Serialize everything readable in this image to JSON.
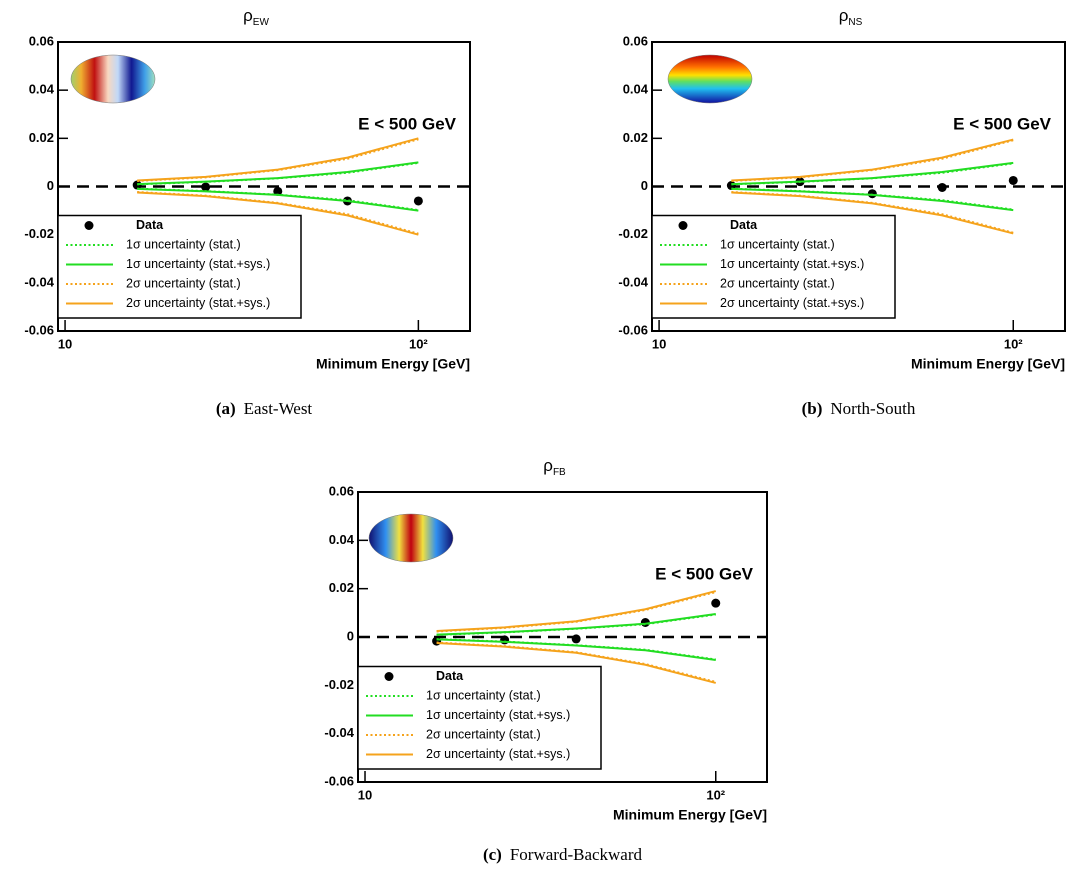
{
  "chart_data": [
    {
      "type": "scatter",
      "title": "ρ",
      "title_subscript": "EW",
      "caption_label": "(a)",
      "caption": "East-West",
      "annotation": "E < 500 GeV",
      "xlabel": "Minimum Energy [GeV]",
      "log_x": true,
      "legend": "lower left",
      "xlim": [
        9.55,
        140
      ],
      "xticks": [
        10,
        {
          "value": 100,
          "label": "10²"
        }
      ],
      "ylim": [
        -0.06,
        0.06
      ],
      "yticks": [
        -0.06,
        -0.04,
        -0.02,
        0,
        0.02,
        0.04,
        0.06
      ],
      "reference_line": 0,
      "x": [
        16,
        25,
        40,
        63,
        100
      ],
      "series": [
        {
          "name": "Data",
          "color": "#000000",
          "style": "points",
          "values": [
            0.0006,
            -0.0002,
            -0.002,
            -0.006,
            -0.006
          ]
        },
        {
          "name": "1σ uncertainty (stat.)",
          "color": "#22dd22",
          "style": "dotted",
          "values": [
            0.0009,
            0.0019,
            0.0034,
            0.0057,
            0.0098
          ],
          "lower_values": [
            -0.0009,
            -0.0019,
            -0.0034,
            -0.0057,
            -0.0098
          ]
        },
        {
          "name": "1σ uncertainty (stat.+sys.)",
          "color": "#22dd22",
          "style": "solid",
          "values": [
            0.001,
            0.002,
            0.0035,
            0.006,
            0.01
          ],
          "lower_values": [
            -0.001,
            -0.002,
            -0.0035,
            -0.006,
            -0.01
          ]
        },
        {
          "name": "2σ uncertainty (stat.)",
          "color": "#f5a31c",
          "style": "dotted",
          "values": [
            0.0023,
            0.0038,
            0.0068,
            0.0115,
            0.0196
          ],
          "lower_values": [
            -0.0023,
            -0.0038,
            -0.0068,
            -0.0115,
            -0.0196
          ]
        },
        {
          "name": "2σ uncertainty (stat.+sys.)",
          "color": "#f5a31c",
          "style": "solid",
          "values": [
            0.0025,
            0.004,
            0.007,
            0.012,
            0.02
          ],
          "lower_values": [
            -0.0025,
            -0.004,
            -0.007,
            -0.012,
            -0.02
          ]
        }
      ]
    },
    {
      "type": "scatter",
      "title": "ρ",
      "title_subscript": "NS",
      "caption_label": "(b)",
      "caption": "North-South",
      "annotation": "E < 500 GeV",
      "xlabel": "Minimum Energy [GeV]",
      "log_x": true,
      "legend": "lower left",
      "xlim": [
        9.55,
        140
      ],
      "xticks": [
        10,
        {
          "value": 100,
          "label": "10²"
        }
      ],
      "ylim": [
        -0.06,
        0.06
      ],
      "yticks": [
        -0.06,
        -0.04,
        -0.02,
        0,
        0.02,
        0.04,
        0.06
      ],
      "reference_line": 0,
      "x": [
        16,
        25,
        40,
        63,
        100
      ],
      "series": [
        {
          "name": "Data",
          "color": "#000000",
          "style": "points",
          "values": [
            0.0004,
            0.002,
            -0.003,
            -0.0004,
            0.0025
          ]
        },
        {
          "name": "1σ uncertainty (stat.)",
          "color": "#22dd22",
          "style": "dotted",
          "values": [
            0.0009,
            0.0019,
            0.0034,
            0.0057,
            0.0096
          ],
          "lower_values": [
            -0.0009,
            -0.0019,
            -0.0034,
            -0.0057,
            -0.0096
          ]
        },
        {
          "name": "1σ uncertainty (stat.+sys.)",
          "color": "#22dd22",
          "style": "solid",
          "values": [
            0.001,
            0.002,
            0.0035,
            0.006,
            0.0098
          ],
          "lower_values": [
            -0.001,
            -0.002,
            -0.0035,
            -0.006,
            -0.0098
          ]
        },
        {
          "name": "2σ uncertainty (stat.)",
          "color": "#f5a31c",
          "style": "dotted",
          "values": [
            0.0023,
            0.0038,
            0.0068,
            0.0115,
            0.0192
          ],
          "lower_values": [
            -0.0023,
            -0.0038,
            -0.0068,
            -0.0115,
            -0.0192
          ]
        },
        {
          "name": "2σ uncertainty (stat.+sys.)",
          "color": "#f5a31c",
          "style": "solid",
          "values": [
            0.0025,
            0.004,
            0.007,
            0.012,
            0.0195
          ],
          "lower_values": [
            -0.0025,
            -0.004,
            -0.007,
            -0.012,
            -0.0195
          ]
        }
      ]
    },
    {
      "type": "scatter",
      "title": "ρ",
      "title_subscript": "FB",
      "caption_label": "(c)",
      "caption": "Forward-Backward",
      "annotation": "E < 500 GeV",
      "xlabel": "Minimum Energy [GeV]",
      "log_x": true,
      "legend": "lower left",
      "xlim": [
        9.55,
        140
      ],
      "xticks": [
        10,
        {
          "value": 100,
          "label": "10²"
        }
      ],
      "ylim": [
        -0.06,
        0.06
      ],
      "yticks": [
        -0.06,
        -0.04,
        -0.02,
        0,
        0.02,
        0.04,
        0.06
      ],
      "reference_line": 0,
      "x": [
        16,
        25,
        40,
        63,
        100
      ],
      "series": [
        {
          "name": "Data",
          "color": "#000000",
          "style": "points",
          "values": [
            -0.0017,
            -0.0012,
            -0.0008,
            0.006,
            0.014
          ]
        },
        {
          "name": "1σ uncertainty (stat.)",
          "color": "#22dd22",
          "style": "dotted",
          "values": [
            0.0009,
            0.0019,
            0.0034,
            0.0053,
            0.0093
          ],
          "lower_values": [
            -0.0009,
            -0.0019,
            -0.0034,
            -0.0053,
            -0.0093
          ]
        },
        {
          "name": "1σ uncertainty (stat.+sys.)",
          "color": "#22dd22",
          "style": "solid",
          "values": [
            0.001,
            0.002,
            0.0035,
            0.0055,
            0.0095
          ],
          "lower_values": [
            -0.001,
            -0.002,
            -0.0035,
            -0.0055,
            -0.0095
          ]
        },
        {
          "name": "2σ uncertainty (stat.)",
          "color": "#f5a31c",
          "style": "dotted",
          "values": [
            0.0023,
            0.0038,
            0.0063,
            0.0112,
            0.0186
          ],
          "lower_values": [
            -0.0023,
            -0.0038,
            -0.0063,
            -0.0112,
            -0.0186
          ]
        },
        {
          "name": "2σ uncertainty (stat.+sys.)",
          "color": "#f5a31c",
          "style": "solid",
          "values": [
            0.0025,
            0.004,
            0.0065,
            0.0115,
            0.019
          ],
          "lower_values": [
            -0.0025,
            -0.004,
            -0.0065,
            -0.0115,
            -0.019
          ]
        }
      ]
    }
  ]
}
